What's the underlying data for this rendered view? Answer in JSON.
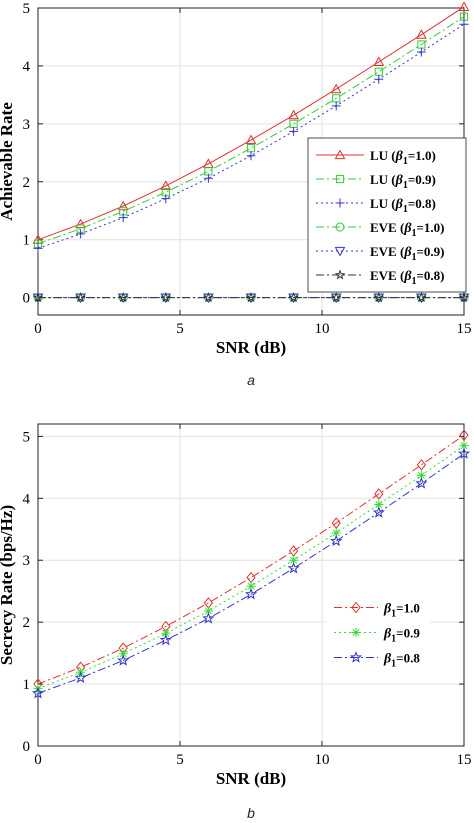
{
  "chart_data": [
    {
      "type": "line",
      "caption": "a",
      "xlabel": "SNR (dB)",
      "ylabel": "Achievable Rate",
      "xlim": [
        0,
        15
      ],
      "ylim": [
        -0.3,
        5
      ],
      "xticks": [
        "0",
        "5",
        "10",
        "15"
      ],
      "yticks": [
        "0",
        "1",
        "2",
        "3",
        "4",
        "5"
      ],
      "grid": true,
      "legend_position": "lower-right",
      "x": [
        0,
        1.5,
        3,
        4.5,
        6,
        7.5,
        9,
        10.5,
        12,
        13.5,
        15
      ],
      "series": [
        {
          "name": "LU (β1=1.0)",
          "label_main": "LU (",
          "label_sym": "β",
          "label_sub": "1",
          "label_rest": "=1.0)",
          "color": "#e03030",
          "dash": "",
          "marker": "triangle",
          "values": [
            1.0,
            1.27,
            1.58,
            1.93,
            2.31,
            2.72,
            3.15,
            3.6,
            4.07,
            4.54,
            5.02
          ]
        },
        {
          "name": "LU (β1=0.9)",
          "label_main": "LU (",
          "label_sym": "β",
          "label_sub": "1",
          "label_rest": "=0.9)",
          "color": "#33cc33",
          "dash": "8,3,2,3",
          "marker": "square",
          "values": [
            0.93,
            1.19,
            1.49,
            1.82,
            2.18,
            2.58,
            3.0,
            3.44,
            3.9,
            4.37,
            4.85
          ]
        },
        {
          "name": "LU (β1=0.8)",
          "label_main": "LU (",
          "label_sym": "β",
          "label_sub": "1",
          "label_rest": "=0.8)",
          "color": "#3333cc",
          "dash": "2,3",
          "marker": "plus",
          "values": [
            0.85,
            1.1,
            1.38,
            1.71,
            2.06,
            2.45,
            2.87,
            3.31,
            3.77,
            4.24,
            4.72
          ]
        },
        {
          "name": "EVE (β1=1.0)",
          "label_main": "EVE (",
          "label_sym": "β",
          "label_sub": "1",
          "label_rest": "=1.0)",
          "color": "#33cc33",
          "dash": "8,3,2,3",
          "marker": "circle",
          "values": [
            0,
            0,
            0,
            0,
            0,
            0,
            0,
            0,
            0,
            0,
            0
          ]
        },
        {
          "name": "EVE (β1=0.9)",
          "label_main": "EVE (",
          "label_sym": "β",
          "label_sub": "1",
          "label_rest": "=0.9)",
          "color": "#3333cc",
          "dash": "2,3",
          "marker": "triangle-down",
          "values": [
            0,
            0,
            0,
            0,
            0,
            0,
            0,
            0,
            0,
            0,
            0
          ]
        },
        {
          "name": "EVE (β1=0.8)",
          "label_main": "EVE (",
          "label_sym": "β",
          "label_sub": "1",
          "label_rest": "=0.8)",
          "color": "#333333",
          "dash": "8,3,2,3",
          "marker": "star",
          "values": [
            0,
            0,
            0,
            0,
            0,
            0,
            0,
            0,
            0,
            0,
            0
          ]
        }
      ]
    },
    {
      "type": "line",
      "caption": "b",
      "xlabel": "SNR (dB)",
      "ylabel": "Secrecy Rate (bps/Hz)",
      "xlim": [
        0,
        15
      ],
      "ylim": [
        0,
        5.2
      ],
      "xticks": [
        "0",
        "5",
        "10",
        "15"
      ],
      "yticks": [
        "0",
        "1",
        "2",
        "3",
        "4",
        "5"
      ],
      "grid": true,
      "legend_position": "center-right",
      "x": [
        0,
        1.5,
        3,
        4.5,
        6,
        7.5,
        9,
        10.5,
        12,
        13.5,
        15
      ],
      "series": [
        {
          "name": "β1=1.0",
          "label_main": "",
          "label_sym": "β",
          "label_sub": "1",
          "label_rest": "=1.0",
          "color": "#e03030",
          "dash": "8,3,2,3",
          "marker": "diamond",
          "values": [
            1.0,
            1.27,
            1.58,
            1.93,
            2.31,
            2.72,
            3.15,
            3.6,
            4.07,
            4.54,
            5.02
          ]
        },
        {
          "name": "β1=0.9",
          "label_main": "",
          "label_sym": "β",
          "label_sub": "1",
          "label_rest": "=0.9",
          "color": "#33dd33",
          "dash": "2,3",
          "marker": "asterisk",
          "values": [
            0.93,
            1.19,
            1.49,
            1.82,
            2.18,
            2.58,
            3.0,
            3.44,
            3.9,
            4.37,
            4.85
          ]
        },
        {
          "name": "β1=0.8",
          "label_main": "",
          "label_sym": "β",
          "label_sub": "1",
          "label_rest": "=0.8",
          "color": "#3333cc",
          "dash": "8,3,2,3",
          "marker": "pentagram",
          "values": [
            0.85,
            1.1,
            1.38,
            1.71,
            2.06,
            2.45,
            2.87,
            3.31,
            3.77,
            4.24,
            4.72
          ]
        }
      ]
    }
  ]
}
